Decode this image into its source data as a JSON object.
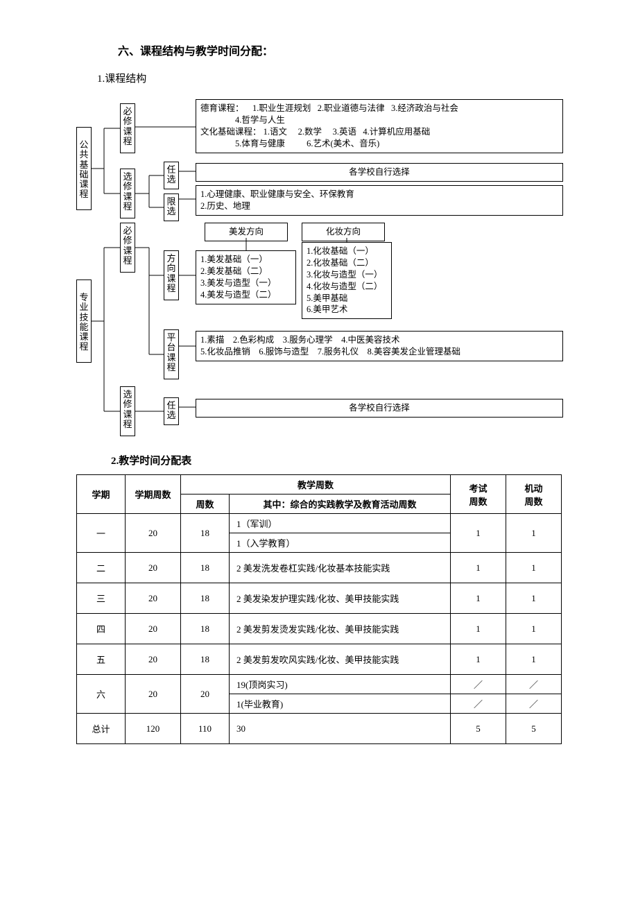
{
  "title_main": "六、课程结构与教学时间分配：",
  "title_sub1": "1.课程结构",
  "title_sub2": "2.教学时间分配表",
  "diagram": {
    "l1_public": "公共基础课程",
    "l1_prof": "专业技能课程",
    "l2_req": "必修课程",
    "l2_elect": "选修课程",
    "l3_renxuan": "任选",
    "l3_xianxuan": "限选",
    "l3_fangxiang": "方向课程",
    "l3_pingtai": "平台课程",
    "block_deyu": "德育课程：    1.职业生涯规划   2.职业道德与法律   3.经济政治与社会\n                4.哲学与人生\n文化基础课程： 1.语文     2.数学     3.英语   4.计算机应用基础\n                5.体育与健康          6.艺术(美术、音乐)",
    "block_schoolchoose": "各学校自行选择",
    "block_xianxuan": "1.心理健康、职业健康与安全、环保教育\n2.历史、地理",
    "dir_meifa_title": "美发方向",
    "dir_huazhuang_title": "化妆方向",
    "dir_meifa_body": "1.美发基础（一）\n2.美发基础（二）\n3.美发与造型（一）\n4.美发与造型（二）",
    "dir_huazhuang_body": "1.化妆基础（一）\n2.化妆基础（二）\n3.化妆与造型（一）\n4.化妆与造型（二）\n5.美甲基础\n6.美甲艺术",
    "block_pingtai": "1.素描    2.色彩构成    3.服务心理学    4.中医美容技术\n5.化妆品推销    6.服饰与造型    7.服务礼仪    8.美容美发企业管理基础",
    "block_schoolchoose2": "各学校自行选择"
  },
  "table": {
    "head": {
      "c1": "学期",
      "c2": "学期周数",
      "c3": "教学周数",
      "c3a": "周数",
      "c3b": "其中：综合的实践教学及教育活动周数",
      "c4": "考试\n周数",
      "c5": "机动\n周数"
    },
    "rows": [
      {
        "a": "一",
        "b": "20",
        "c": "18",
        "d1": "1（军训）",
        "d2": "1（入学教育）",
        "e": "1",
        "f": "1",
        "split": true
      },
      {
        "a": "二",
        "b": "20",
        "c": "18",
        "d": "2 美发洗发卷杠实践/化妆基本技能实践",
        "e": "1",
        "f": "1"
      },
      {
        "a": "三",
        "b": "20",
        "c": "18",
        "d": "2 美发染发护理实践/化妆、美甲技能实践",
        "e": "1",
        "f": "1"
      },
      {
        "a": "四",
        "b": "20",
        "c": "18",
        "d": "2 美发剪发烫发实践/化妆、美甲技能实践",
        "e": "1",
        "f": "1"
      },
      {
        "a": "五",
        "b": "20",
        "c": "18",
        "d": "2 美发剪发吹风实践/化妆、美甲技能实践",
        "e": "1",
        "f": "1"
      },
      {
        "a": "六",
        "b": "20",
        "c": "20",
        "d1": "19(顶岗实习)",
        "d2": "1(毕业教育)",
        "e": "／",
        "f": "／",
        "split": true,
        "efsplit": true
      },
      {
        "a": "总计",
        "b": "120",
        "c": "110",
        "d": "30",
        "e": "5",
        "f": "5"
      }
    ]
  }
}
